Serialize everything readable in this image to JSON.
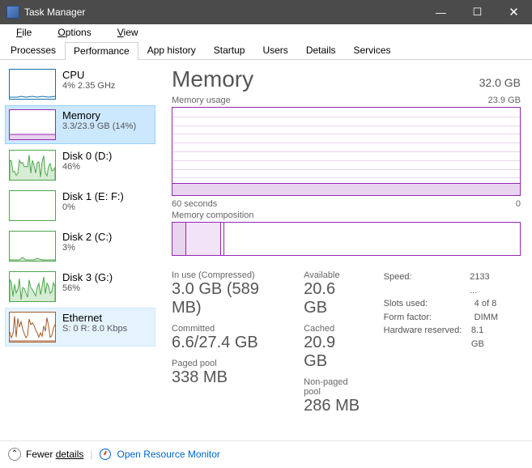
{
  "window": {
    "title": "Task Manager"
  },
  "menu": [
    "File",
    "Options",
    "View"
  ],
  "tabs": [
    "Processes",
    "Performance",
    "App history",
    "Startup",
    "Users",
    "Details",
    "Services"
  ],
  "active_tab": 1,
  "colors": {
    "memory": "#9528b4",
    "memory_light": "#f3e3f7",
    "memory_grid": "#e9d4ef",
    "memory_band": "#e9d4ef",
    "cpu": "#1170a9",
    "disk": "#4ca64c",
    "disk_fill": "#d7ecd4",
    "ethernet": "#a65a28"
  },
  "sidebar": [
    {
      "key": "cpu",
      "name": "CPU",
      "sub": "4% 2.35 GHz",
      "border": "#1170a9",
      "type": "cpu"
    },
    {
      "key": "memory",
      "name": "Memory",
      "sub": "3.3/23.9 GB (14%)",
      "border": "#9528b4",
      "type": "memory",
      "selected": true
    },
    {
      "key": "disk0",
      "name": "Disk 0 (D:)",
      "sub": "46%",
      "border": "#4ca64c",
      "type": "disk-busy"
    },
    {
      "key": "disk1",
      "name": "Disk 1 (E: F:)",
      "sub": "0%",
      "border": "#4ca64c",
      "type": "disk-idle"
    },
    {
      "key": "disk2",
      "name": "Disk 2 (C:)",
      "sub": "3%",
      "border": "#4ca64c",
      "type": "disk-low"
    },
    {
      "key": "disk3",
      "name": "Disk 3 (G:)",
      "sub": "56%",
      "border": "#4ca64c",
      "type": "disk-busy"
    },
    {
      "key": "eth",
      "name": "Ethernet",
      "sub": "S: 0 R: 8.0 Kbps",
      "border": "#a65a28",
      "type": "eth",
      "hover": true
    }
  ],
  "detail": {
    "title": "Memory",
    "total": "32.0 GB",
    "usage_label": "Memory usage",
    "usage_right": "23.9 GB",
    "time_left": "60 seconds",
    "time_right": "0",
    "comp_label": "Memory composition",
    "usage_band_pct": 14,
    "composition": [
      {
        "width_pct": 4,
        "fill": "#e9d4ef"
      },
      {
        "width_pct": 10,
        "fill": "#f3e3f7"
      },
      {
        "width_pct": 1,
        "fill": "#ffffff"
      }
    ],
    "stats1": [
      {
        "label": "In use (Compressed)",
        "value": "3.0 GB (589 MB)"
      },
      {
        "label": "Committed",
        "value": "6.6/27.4 GB"
      },
      {
        "label": "Paged pool",
        "value": "338 MB"
      }
    ],
    "stats2": [
      {
        "label": "Available",
        "value": "20.6 GB"
      },
      {
        "label": "Cached",
        "value": "20.9 GB"
      },
      {
        "label": "Non-paged pool",
        "value": "286 MB"
      }
    ],
    "kv": [
      {
        "k": "Speed:",
        "v": "2133 ..."
      },
      {
        "k": "Slots used:",
        "v": "4 of 8"
      },
      {
        "k": "Form factor:",
        "v": "DIMM"
      },
      {
        "k": "Hardware reserved:",
        "v": "8.1 GB"
      }
    ]
  },
  "footer": {
    "fewer": "Fewer ",
    "details": "details",
    "open": "Open Resource Monitor"
  }
}
